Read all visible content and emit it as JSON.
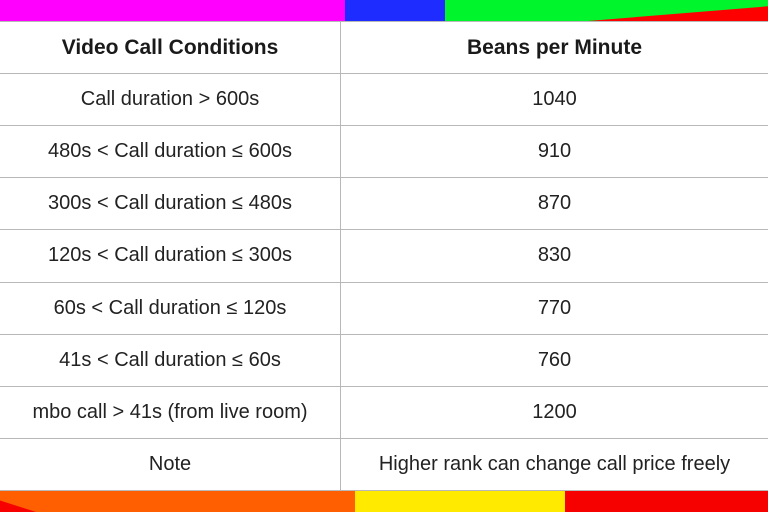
{
  "table": {
    "header": {
      "conditions": "Video Call Conditions",
      "beans": "Beans per Minute"
    },
    "rows": [
      {
        "condition": "Call duration > 600s",
        "beans": "1040"
      },
      {
        "condition": "480s < Call duration ≤ 600s",
        "beans": "910"
      },
      {
        "condition": "300s < Call duration ≤ 480s",
        "beans": "870"
      },
      {
        "condition": "120s < Call duration ≤ 300s",
        "beans": "830"
      },
      {
        "condition": "60s < Call duration ≤ 120s",
        "beans": "770"
      },
      {
        "condition": "41s < Call duration ≤ 60s",
        "beans": "760"
      },
      {
        "condition": "mbo call > 41s (from live room)",
        "beans": "1200"
      },
      {
        "condition": "Note",
        "beans": "Higher rank can change call price freely"
      }
    ]
  },
  "colors": {
    "stripe_magenta": "#ff00ff",
    "stripe_blue": "#1f2cff",
    "stripe_green": "#00f52c",
    "stripe_red": "#f70000",
    "stripe_orange": "#ff5f00",
    "stripe_yellow": "#ffea00",
    "grid_line": "#b8b8b8",
    "text": "#222222"
  }
}
